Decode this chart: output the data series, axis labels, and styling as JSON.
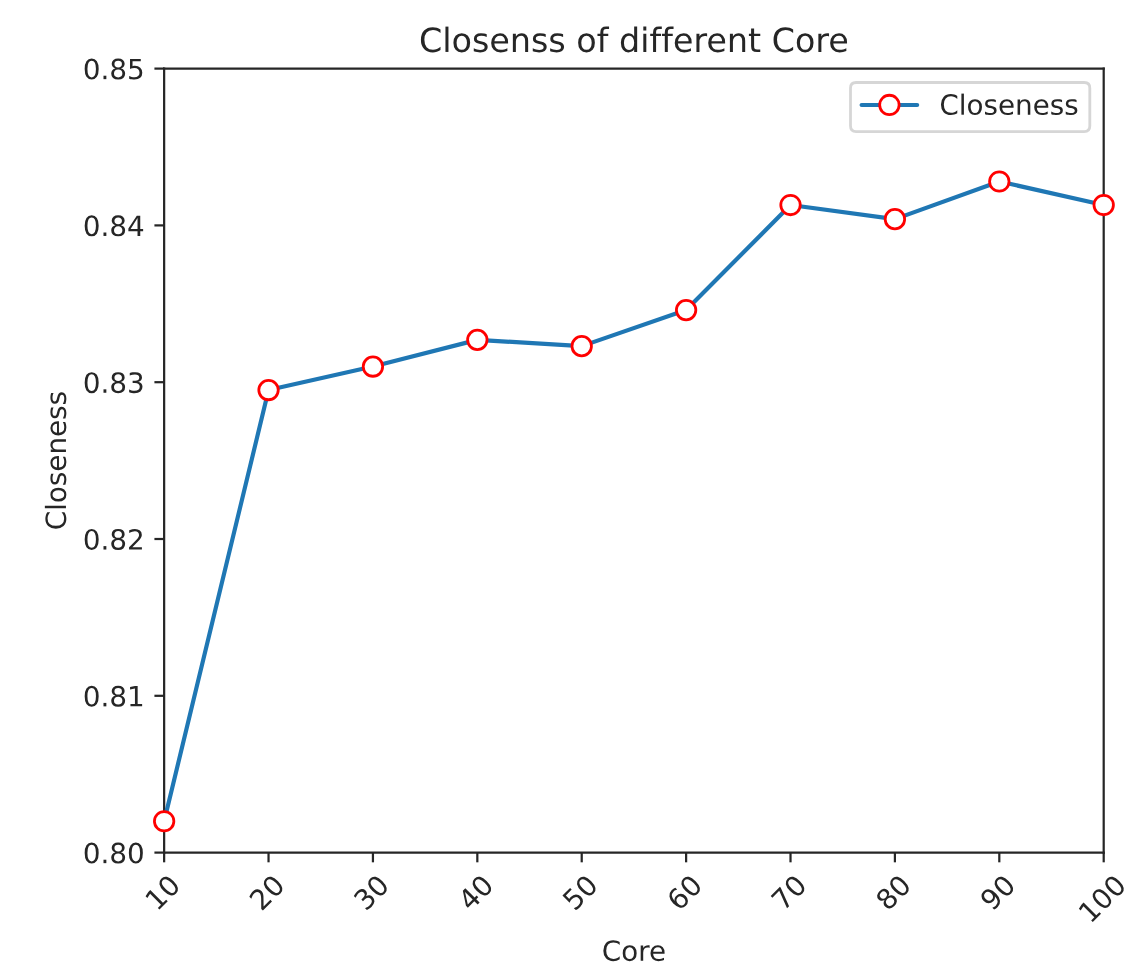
{
  "chart_data": {
    "type": "line",
    "title": "Closenss of different Core",
    "xlabel": "Core",
    "ylabel": "Closeness",
    "x": [
      10,
      20,
      30,
      40,
      50,
      60,
      70,
      80,
      90,
      100
    ],
    "series": [
      {
        "name": "Closeness",
        "color": "#1f77b4",
        "values": [
          0.802,
          0.8295,
          0.831,
          0.8327,
          0.8323,
          0.8346,
          0.8413,
          0.8404,
          0.8428,
          0.8413
        ]
      }
    ],
    "xlim": [
      10,
      100
    ],
    "xticks": [
      10,
      20,
      30,
      40,
      50,
      60,
      70,
      80,
      90,
      100
    ],
    "ylim": [
      0.8,
      0.85
    ],
    "yticks": [
      {
        "value": 0.8,
        "label": "0.80"
      },
      {
        "value": 0.81,
        "label": "0.81"
      },
      {
        "value": 0.82,
        "label": "0.82"
      },
      {
        "value": 0.83,
        "label": "0.83"
      },
      {
        "value": 0.84,
        "label": "0.84"
      },
      {
        "value": 0.85,
        "label": "0.85"
      }
    ],
    "marker": "circle",
    "legend": "top right",
    "grid": false
  }
}
